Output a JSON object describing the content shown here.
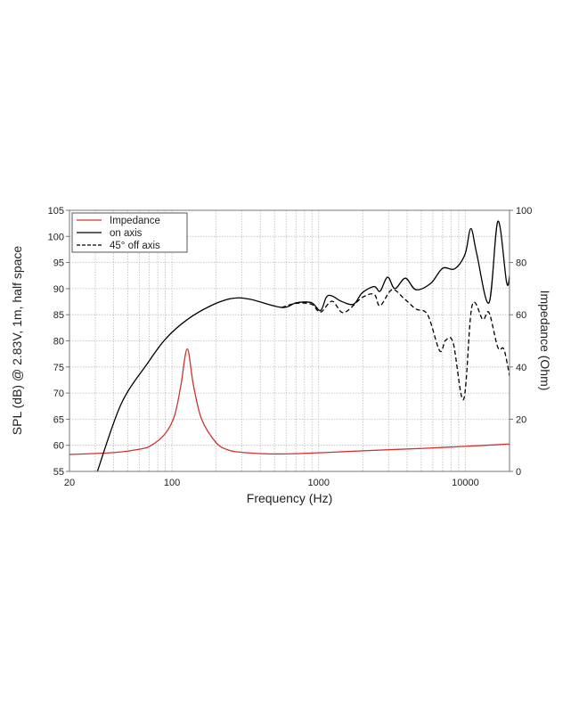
{
  "chart_data": {
    "type": "line",
    "xlabel": "Frequency (Hz)",
    "ylabel": "SPL (dB) @ 2.83V, 1m, half space",
    "y2label": "Impedance (Ohm)",
    "xscale": "log",
    "xlim": [
      20,
      20000
    ],
    "ylim": [
      55,
      105
    ],
    "y2lim": [
      0,
      100
    ],
    "grid": true,
    "legend_position": "top-left",
    "x_ticks": [
      20,
      100,
      1000,
      10000
    ],
    "x_tick_labels": [
      "20",
      "100",
      "1000",
      "10000"
    ],
    "y_ticks": [
      55,
      60,
      65,
      70,
      75,
      80,
      85,
      90,
      95,
      100,
      105
    ],
    "y2_ticks": [
      0,
      20,
      40,
      60,
      80,
      100
    ],
    "series": [
      {
        "name": "Impedance",
        "axis": "right",
        "color": "#d0312d",
        "style": "solid",
        "x": [
          20,
          40,
          60,
          72,
          90,
          104,
          115,
          127,
          140,
          159,
          200,
          242,
          300,
          464,
          700,
          1180,
          2000,
          5000,
          10000,
          20000
        ],
        "y": [
          6.5,
          7.2,
          8.5,
          9.9,
          14.5,
          21.3,
          33,
          46.9,
          33,
          20.1,
          11,
          8.2,
          7.3,
          6.7,
          6.8,
          7.3,
          7.9,
          8.8,
          9.6,
          10.5
        ]
      },
      {
        "name": "on axis",
        "axis": "left",
        "color": "#000000",
        "style": "solid",
        "x": [
          31,
          45,
          68.5,
          90.6,
          126,
          183,
          254,
          336,
          559,
          706,
          894,
          1029,
          1130,
          1234,
          1420,
          1728,
          1980,
          2390,
          2620,
          2950,
          3310,
          3900,
          4600,
          5800,
          7000,
          8450,
          9950,
          10900,
          11970,
          14500,
          16670,
          19100,
          20000
        ],
        "y": [
          55,
          67.9,
          75.8,
          80.4,
          84,
          86.7,
          88.1,
          88,
          86.4,
          87.3,
          87.3,
          85.8,
          88.4,
          88.6,
          87.6,
          87,
          89.2,
          90.4,
          89.5,
          92.2,
          90,
          92,
          89.8,
          91,
          93.9,
          93.8,
          96.6,
          101.5,
          96.6,
          87.3,
          102.9,
          91.2,
          92.4
        ]
      },
      {
        "name": "45° off axis",
        "axis": "left",
        "color": "#000000",
        "style": "dashed",
        "x": [
          559,
          706,
          894,
          1029,
          1234,
          1480,
          1980,
          2390,
          2620,
          3160,
          3820,
          4600,
          5530,
          6680,
          7330,
          8260,
          9740,
          11100,
          13150,
          14500,
          16670,
          18300,
          20000
        ],
        "y": [
          86.4,
          87.2,
          87,
          85.5,
          87.6,
          85.4,
          88.3,
          88.9,
          86.7,
          89.8,
          88.1,
          86.1,
          85,
          78.1,
          80.1,
          79.6,
          68.8,
          86.7,
          84.1,
          85.4,
          78.7,
          78.4,
          73.3
        ]
      }
    ]
  }
}
